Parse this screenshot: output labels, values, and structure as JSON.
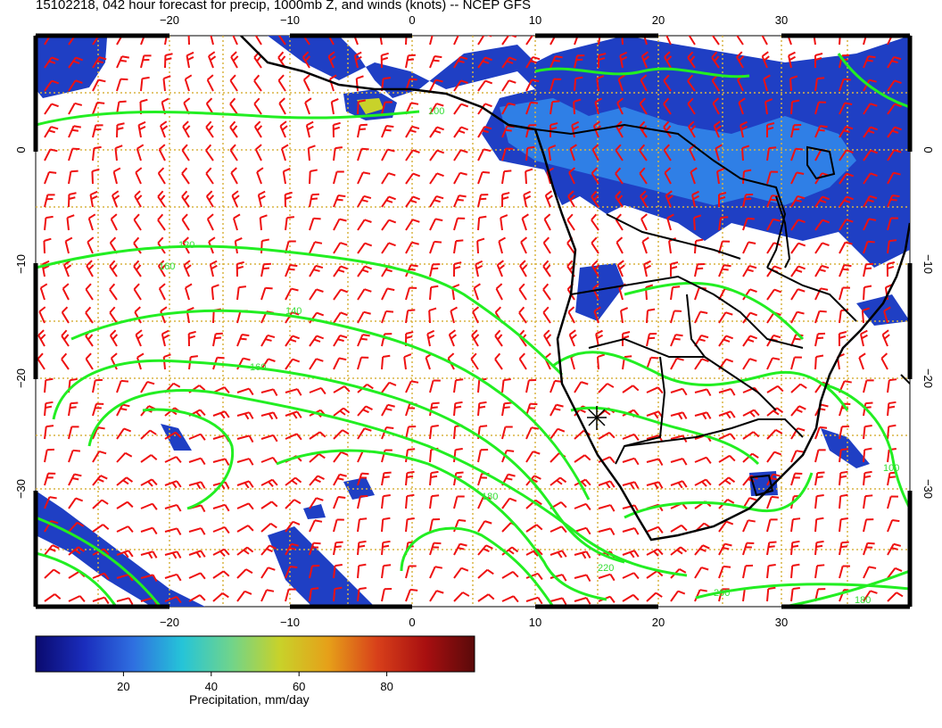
{
  "title": "15102218, 042 hour forecast for precip, 1000mb Z, and winds (knots) -- NCEP GFS",
  "map": {
    "lon_ticks": [
      -20,
      -10,
      0,
      10,
      20,
      30
    ],
    "lat_ticks": [
      0,
      -10,
      -20,
      -30
    ],
    "lon_range": [
      -30,
      40
    ],
    "lat_range": [
      -40,
      10
    ],
    "grid": true,
    "colors": {
      "grid": "#d8b341",
      "contour": "#22ee22",
      "wind_barb": "#ee1111",
      "coast": "#000000"
    },
    "contour_labels": [
      "100",
      "120",
      "140",
      "160",
      "180",
      "200",
      "220",
      "100",
      "160",
      "180"
    ]
  },
  "colorbar": {
    "tick_labels": [
      "20",
      "40",
      "60",
      "80"
    ],
    "range": [
      0,
      100
    ],
    "title": "Precipitation, mm/day",
    "colors": [
      "#0a0a6e",
      "#1a2dbd",
      "#2f6fe0",
      "#25c4d8",
      "#6fd48c",
      "#c8d22a",
      "#e6a019",
      "#d8401a",
      "#a80f10",
      "#5a0a0a"
    ]
  }
}
